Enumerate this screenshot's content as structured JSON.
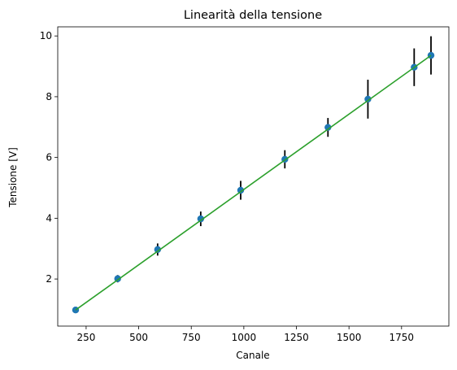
{
  "chart_data": {
    "type": "scatter",
    "title": "Linearità della tensione",
    "xlabel": "Canale",
    "ylabel": "Tensione [V]",
    "xlim": [
      115,
      1975
    ],
    "ylim": [
      0.45,
      10.3
    ],
    "xticks": [
      250,
      500,
      750,
      1000,
      1250,
      1500,
      1750
    ],
    "yticks": [
      2,
      4,
      6,
      8,
      10
    ],
    "grid": false,
    "series": [
      {
        "kind": "points-with-errorbars",
        "color": "#1f77b4",
        "errorbar_color": "#000000",
        "points": [
          {
            "x": 200,
            "y": 0.98,
            "yerr": 0.05
          },
          {
            "x": 400,
            "y": 2.01,
            "yerr": 0.12
          },
          {
            "x": 590,
            "y": 2.97,
            "yerr": 0.2
          },
          {
            "x": 795,
            "y": 3.98,
            "yerr": 0.24
          },
          {
            "x": 985,
            "y": 4.92,
            "yerr": 0.31
          },
          {
            "x": 1195,
            "y": 5.94,
            "yerr": 0.3
          },
          {
            "x": 1400,
            "y": 6.99,
            "yerr": 0.31
          },
          {
            "x": 1590,
            "y": 7.92,
            "yerr": 0.64
          },
          {
            "x": 1810,
            "y": 8.97,
            "yerr": 0.62
          },
          {
            "x": 1890,
            "y": 9.36,
            "yerr": 0.63
          }
        ]
      },
      {
        "kind": "fit-line",
        "color": "#2ca02c",
        "x": [
          200,
          1890
        ],
        "y": [
          0.98,
          9.36
        ]
      }
    ]
  }
}
